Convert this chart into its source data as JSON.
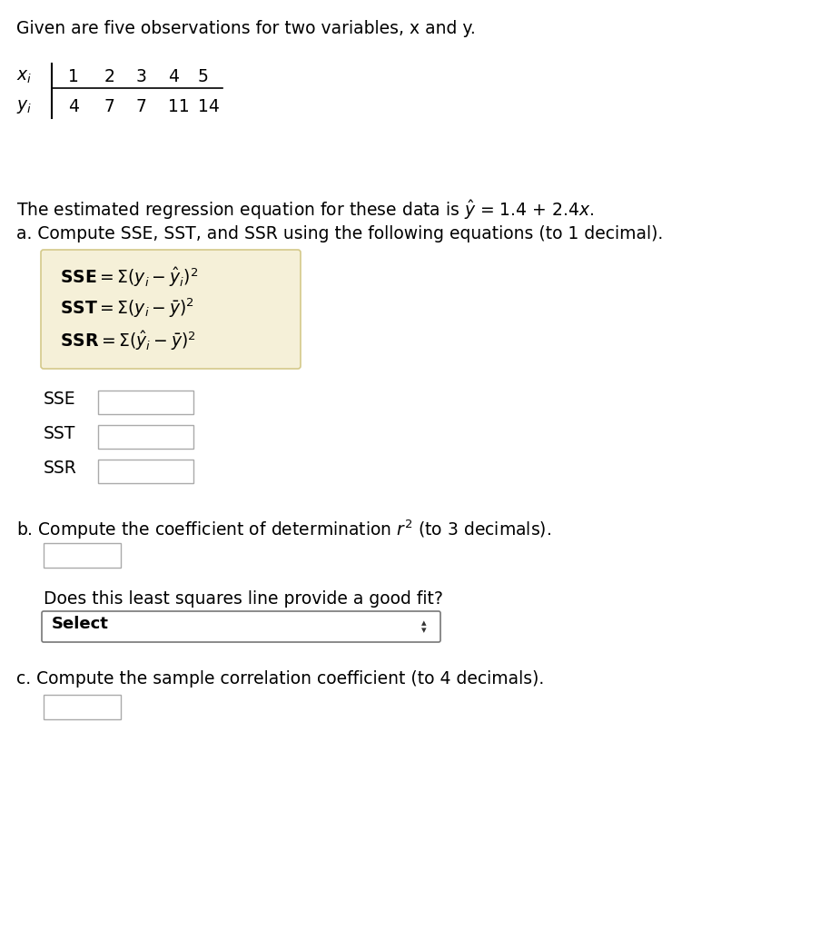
{
  "bg_color": "#ffffff",
  "text_color": "#000000",
  "intro_text": "Given are five observations for two variables, x and y.",
  "x_values": [
    "1",
    "2",
    "3",
    "4",
    "5"
  ],
  "y_values": [
    "4",
    "7",
    "7",
    "11",
    "14"
  ],
  "part_a_text": "a. Compute SSE, SST, and SSR using the following equations (to 1 decimal).",
  "formula_box_color": "#f5f0d8",
  "formula_box_edge": "#d4c98a",
  "input_labels_a": [
    "SSE",
    "SST",
    "SSR"
  ],
  "part_b_text": "b. Compute the coefficient of determination ",
  "part_b_suffix": " (to 3 decimals).",
  "dropdown_text": "Does this least squares line provide a good fit?",
  "dropdown_label": "Select",
  "part_c_text": "c. Compute the sample correlation coefficient (to 4 decimals).",
  "input_box_color": "#ffffff",
  "input_box_border": "#aaaaaa",
  "font_size": 13.5
}
